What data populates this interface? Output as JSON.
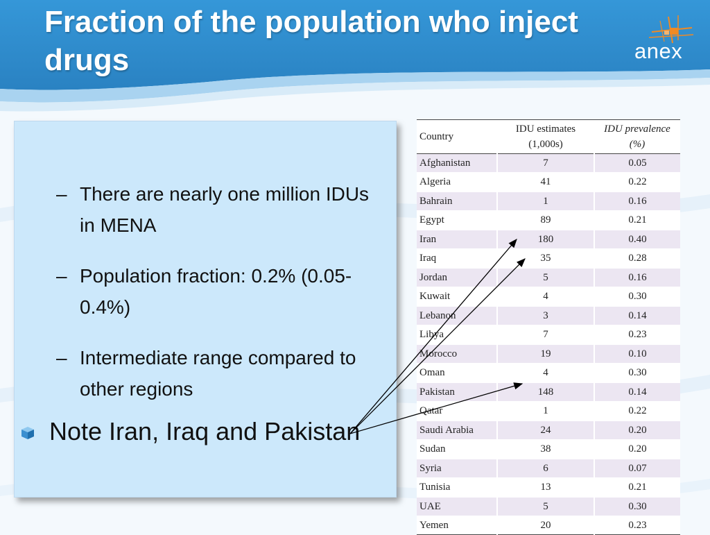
{
  "slide": {
    "title": "Fraction of the population who inject drugs",
    "logo_text": "anex",
    "sub_bullets": [
      "There are nearly one million IDUs in MENA",
      "Population fraction: 0.2% (0.05-0.4%)",
      "Intermediate range compared to other regions"
    ],
    "dash": "–",
    "main_bullet": "Note Iran, Iraq and Pakistan"
  },
  "table": {
    "headers": [
      "Country",
      "IDU estimates (1,000s)",
      "IDU prevalence (%)"
    ],
    "rows": [
      [
        "Afghanistan",
        "7",
        "0.05"
      ],
      [
        "Algeria",
        "41",
        "0.22"
      ],
      [
        "Bahrain",
        "1",
        "0.16"
      ],
      [
        "Egypt",
        "89",
        "0.21"
      ],
      [
        "Iran",
        "180",
        "0.40"
      ],
      [
        "Iraq",
        "35",
        "0.28"
      ],
      [
        "Jordan",
        "5",
        "0.16"
      ],
      [
        "Kuwait",
        "4",
        "0.30"
      ],
      [
        "Lebanon",
        "3",
        "0.14"
      ],
      [
        "Libya",
        "7",
        "0.23"
      ],
      [
        "Morocco",
        "19",
        "0.10"
      ],
      [
        "Oman",
        "4",
        "0.30"
      ],
      [
        "Pakistan",
        "148",
        "0.14"
      ],
      [
        "Qatar",
        "1",
        "0.22"
      ],
      [
        "Saudi Arabia",
        "24",
        "0.20"
      ],
      [
        "Sudan",
        "38",
        "0.20"
      ],
      [
        "Syria",
        "6",
        "0.07"
      ],
      [
        "Tunisia",
        "13",
        "0.21"
      ],
      [
        "UAE",
        "5",
        "0.30"
      ],
      [
        "Yemen",
        "20",
        "0.23"
      ]
    ]
  },
  "colors": {
    "header_blue": "#2f8ccd",
    "box_fill": "#cce8fb",
    "row_stripe": "#ece6f2",
    "logo_orange": "#f08a24"
  }
}
